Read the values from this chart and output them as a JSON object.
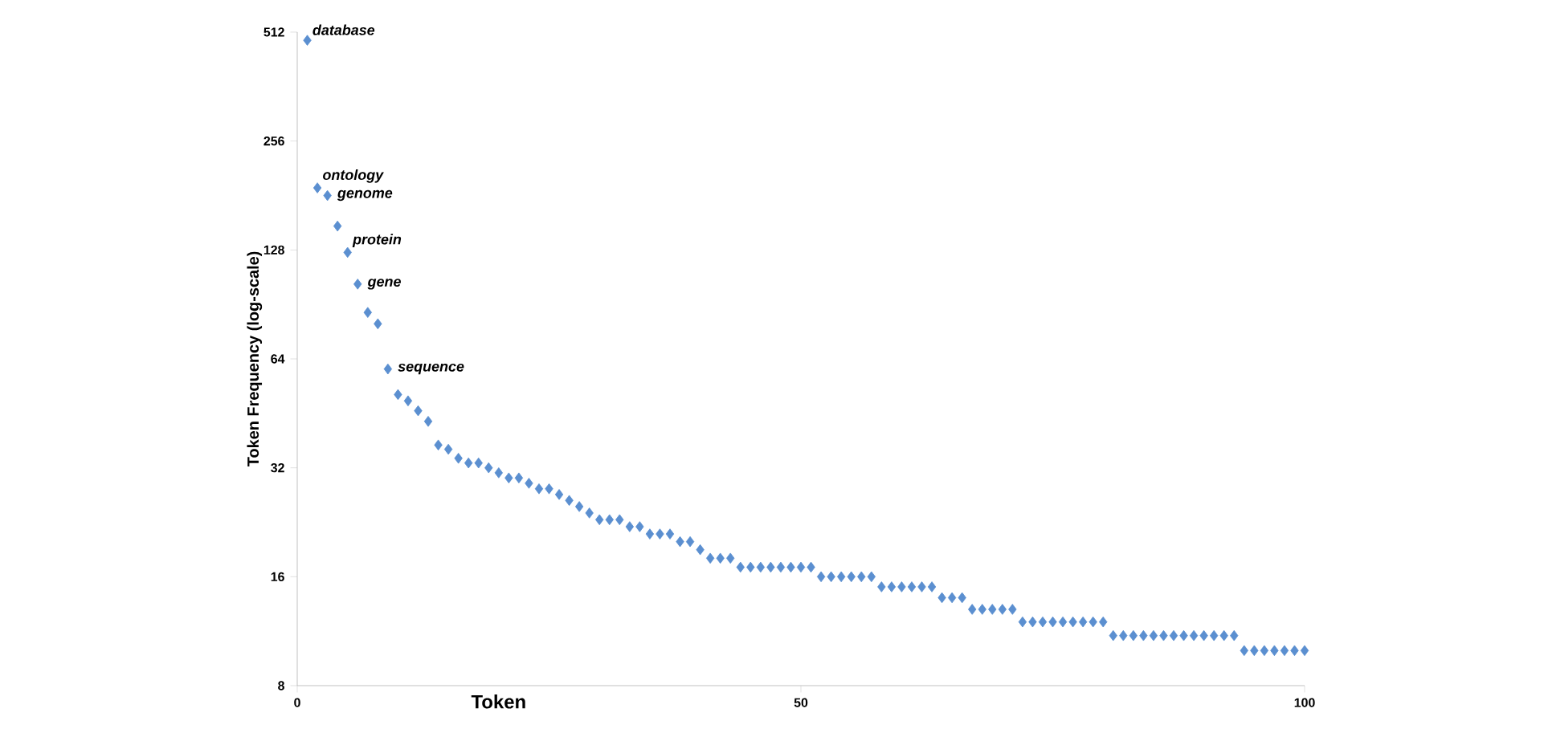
{
  "chart_data": {
    "type": "scatter",
    "xlabel": "Token",
    "ylabel": "Token Frequency (log-scale)",
    "x": [
      1,
      2,
      3,
      4,
      5,
      6,
      7,
      8,
      9,
      10,
      11,
      12,
      13,
      14,
      15,
      16,
      17,
      18,
      19,
      20,
      21,
      22,
      23,
      24,
      25,
      26,
      27,
      28,
      29,
      30,
      31,
      32,
      33,
      34,
      35,
      36,
      37,
      38,
      39,
      40,
      41,
      42,
      43,
      44,
      45,
      46,
      47,
      48,
      49,
      50,
      51,
      52,
      53,
      54,
      55,
      56,
      57,
      58,
      59,
      60,
      61,
      62,
      63,
      64,
      65,
      66,
      67,
      68,
      69,
      70,
      71,
      72,
      73,
      74,
      75,
      76,
      77,
      78,
      79,
      80,
      81,
      82,
      83,
      84,
      85,
      86,
      87,
      88,
      89,
      90,
      91,
      92,
      93,
      94,
      95,
      96,
      97,
      98,
      99,
      100
    ],
    "series": [
      {
        "color": "#5b8fd0",
        "values": [
          486,
          190,
          181,
          149,
          126,
          103,
          86,
          80,
          60,
          51,
          49,
          46,
          43,
          37,
          36,
          34,
          33,
          33,
          32,
          31,
          30,
          30,
          29,
          28,
          28,
          27,
          26,
          25,
          24,
          23,
          23,
          23,
          22,
          22,
          21,
          21,
          21,
          20,
          20,
          19,
          18,
          18,
          18,
          17,
          17,
          17,
          17,
          17,
          17,
          17,
          17,
          16,
          16,
          16,
          16,
          16,
          16,
          15,
          15,
          15,
          15,
          15,
          15,
          14,
          14,
          14,
          13,
          13,
          13,
          13,
          13,
          12,
          12,
          12,
          12,
          12,
          12,
          12,
          12,
          12,
          11,
          11,
          11,
          11,
          11,
          11,
          11,
          11,
          11,
          11,
          11,
          11,
          11,
          10,
          10,
          10,
          10,
          10,
          10,
          10
        ]
      }
    ],
    "annotations": [
      {
        "text": "database",
        "x": 1,
        "y": 486
      },
      {
        "text": "ontology",
        "x": 2,
        "y": 190
      },
      {
        "text": "genome",
        "x": 3,
        "y": 181
      },
      {
        "text": "protein",
        "x": 5,
        "y": 126
      },
      {
        "text": "gene",
        "x": 6,
        "y": 103
      },
      {
        "text": "sequence",
        "x": 9,
        "y": 60
      }
    ],
    "log": "y",
    "marker": "diamond",
    "xlim": [
      0,
      100
    ],
    "xticks": [
      0,
      50,
      100
    ],
    "ylim": [
      8,
      512
    ],
    "yticks": [
      8,
      16,
      32,
      64,
      128,
      256,
      512
    ]
  }
}
